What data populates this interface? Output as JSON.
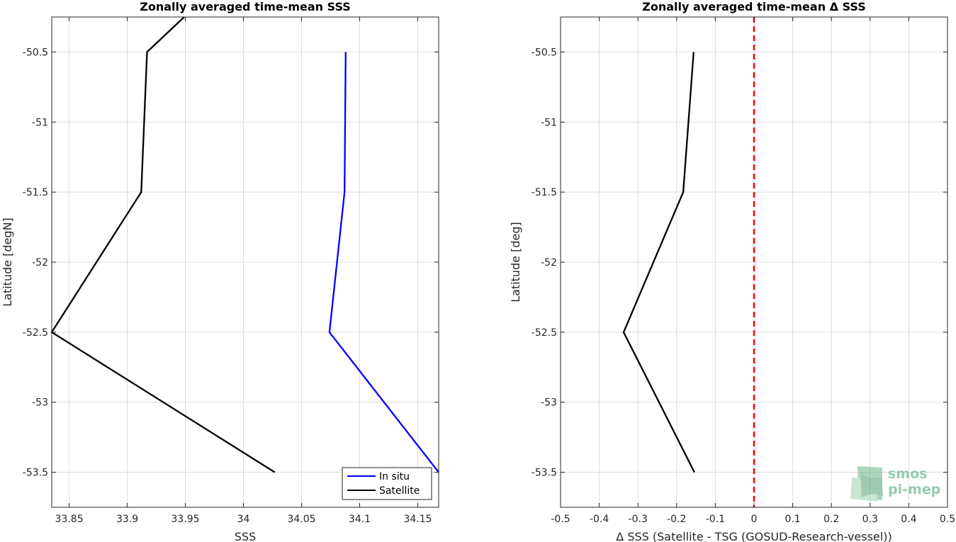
{
  "chart_data": [
    {
      "type": "line",
      "title": "Zonally averaged time-mean SSS",
      "xlabel": "SSS",
      "ylabel": "Latitude [degN]",
      "xlim": [
        33.835,
        34.168
      ],
      "ylim": [
        -53.75,
        -50.25
      ],
      "xticks": [
        33.85,
        33.9,
        33.95,
        34,
        34.05,
        34.1,
        34.15
      ],
      "xtick_labels": [
        "33.85",
        "33.9",
        "33.95",
        "34",
        "34.05",
        "34.1",
        "34.15"
      ],
      "yticks": [
        -50.5,
        -51,
        -51.5,
        -52,
        -52.5,
        -53,
        -53.5
      ],
      "ytick_labels": [
        "-50.5",
        "-51",
        "-51.5",
        "-52",
        "-52.5",
        "-53",
        "-53.5"
      ],
      "grid": true,
      "legend": "bottom-right",
      "series": [
        {
          "name": "In situ",
          "color": "#0000ff",
          "x": [
            34.088,
            34.087,
            34.074,
            34.168
          ],
          "y": [
            -50.5,
            -51.5,
            -52.5,
            -53.5
          ]
        },
        {
          "name": "Satellite",
          "color": "#000000",
          "x": [
            33.949,
            33.917,
            33.912,
            33.835,
            34.027
          ],
          "y": [
            -50.25,
            -50.5,
            -51.5,
            -52.5,
            -53.5
          ]
        }
      ]
    },
    {
      "type": "line",
      "title": "Zonally averaged time-mean Δ SSS",
      "xlabel": "Δ SSS (Satellite - TSG (GOSUD-Research-vessel))",
      "ylabel": "Latitude [deg]",
      "xlim": [
        -0.5,
        0.5
      ],
      "ylim": [
        -53.75,
        -50.25
      ],
      "xticks": [
        -0.5,
        -0.4,
        -0.3,
        -0.2,
        -0.1,
        0,
        0.1,
        0.2,
        0.3,
        0.4,
        0.5
      ],
      "xtick_labels": [
        "-0.5",
        "-0.4",
        "-0.3",
        "-0.2",
        "-0.1",
        "0",
        "0.1",
        "0.2",
        "0.3",
        "0.4",
        "0.5"
      ],
      "yticks": [
        -50.5,
        -51,
        -51.5,
        -52,
        -52.5,
        -53,
        -53.5
      ],
      "ytick_labels": [
        "-50.5",
        "-51",
        "-51.5",
        "-52",
        "-52.5",
        "-53",
        "-53.5"
      ],
      "grid": true,
      "reference_line": {
        "x": 0,
        "color": "#ff0000",
        "style": "dashed"
      },
      "series": [
        {
          "color": "#000000",
          "x": [
            -0.156,
            -0.183,
            -0.337,
            -0.154
          ],
          "y": [
            -50.5,
            -51.5,
            -52.5,
            -53.5
          ]
        }
      ]
    }
  ],
  "logo": {
    "line1": "smos",
    "line2": "pi-mep",
    "color": "#7dbf9a"
  }
}
